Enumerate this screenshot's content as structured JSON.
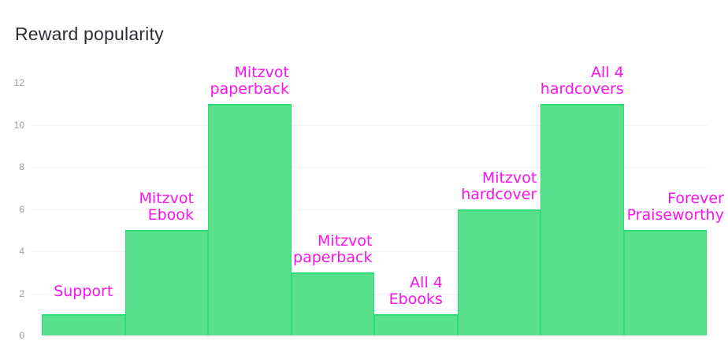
{
  "header": {
    "title": "Reward popularity"
  },
  "colors": {
    "background": "#ffffff",
    "title": "#2d2e33",
    "bar_fill": "#57df8c",
    "bar_stroke": "#2dde77",
    "label": "#fb12f0",
    "tick": "#9b9b9b",
    "grid": "#f0f0f4"
  },
  "chart_data": {
    "type": "bar",
    "title": "Reward popularity",
    "categories": [
      "Support",
      "Mitzvot Ebook",
      "Mitzvot paperback",
      "Mitzvot paperback",
      "All 4 Ebooks",
      "Mitzvot hardcover",
      "All 4 hardcovers",
      "Forever Praiseworthy"
    ],
    "values": [
      1,
      5,
      11,
      3,
      1,
      6,
      11,
      5
    ],
    "labels": [
      {
        "lines": [
          "Support"
        ]
      },
      {
        "lines": [
          "Mitzvot",
          "Ebook"
        ]
      },
      {
        "lines": [
          "Mitzvot",
          "paperback"
        ]
      },
      {
        "lines": [
          "Mitzvot",
          "paperback"
        ]
      },
      {
        "lines": [
          "All 4",
          "Ebooks"
        ]
      },
      {
        "lines": [
          "Mitzvot",
          "hardcover"
        ]
      },
      {
        "lines": [
          "All 4",
          "hardcovers"
        ]
      },
      {
        "lines": [
          "Forever",
          "Praiseworthy"
        ],
        "dx": 13
      }
    ],
    "xlabel": "",
    "ylabel": "",
    "ylim": [
      0,
      12
    ],
    "yticks": [
      0,
      2,
      4,
      6,
      8,
      10,
      12
    ],
    "gridlines_at": [
      2,
      4,
      6,
      8,
      10
    ],
    "grid": true,
    "legend": false,
    "bar_gap": 0,
    "label_color_note": "category labels drawn in magenta above each bar"
  }
}
